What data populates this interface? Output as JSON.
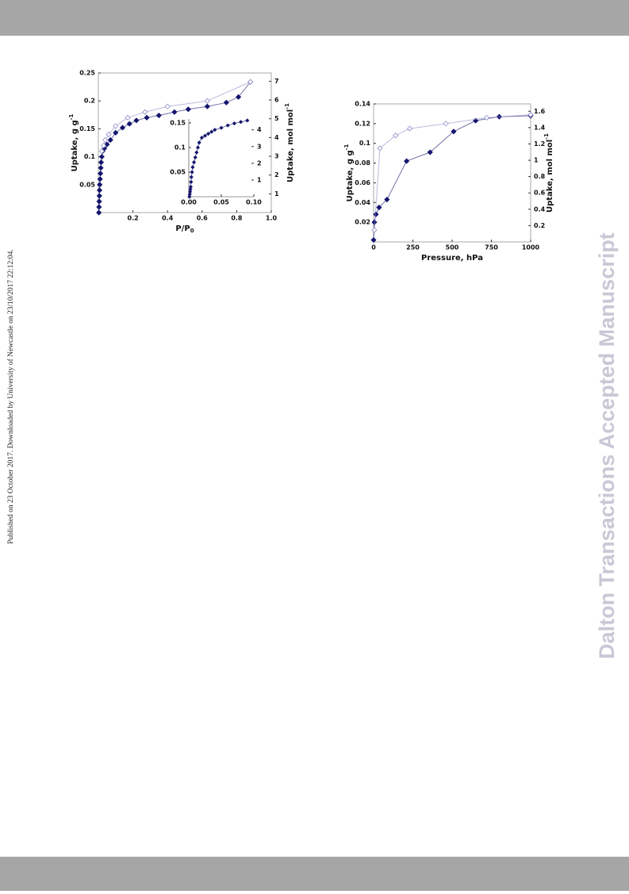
{
  "side_note": "Published on 23 October 2017. Downloaded by University of Newcastle on 23/10/2017 22:12:04.",
  "watermark": "Dalton Transactions Accepted Manuscript",
  "chart_data": [
    {
      "type": "scatter",
      "x_label": "P/P",
      "x_label_sub": "0",
      "y_label": "Uptake, g g",
      "y_label_sup": "-1",
      "y2_label": "Uptake, mol mol",
      "y2_label_sup": "-1",
      "xlim": [
        0,
        1.0
      ],
      "xticks": [
        0.2,
        0.4,
        0.6,
        0.8,
        {
          "value": 1.0,
          "label": "1.0"
        }
      ],
      "ylim": [
        0,
        0.25
      ],
      "yticks": [
        0.05,
        0.1,
        0.15,
        0.2,
        0.25
      ],
      "y2lim": [
        0,
        7.44
      ],
      "y2ticks": [
        1,
        2,
        3,
        4,
        5,
        6,
        7
      ],
      "series": [
        {
          "name": "adsorption",
          "color": "#14146e",
          "filled": true,
          "x": [
            0.003,
            0.004,
            0.005,
            0.006,
            0.007,
            0.008,
            0.01,
            0.012,
            0.014,
            0.016,
            0.02,
            0.025,
            0.035,
            0.05,
            0.07,
            0.1,
            0.14,
            0.18,
            0.22,
            0.28,
            0.35,
            0.44,
            0.52,
            0.63,
            0.74,
            0.81,
            0.88
          ],
          "values": [
            0.0,
            0.01,
            0.02,
            0.03,
            0.04,
            0.05,
            0.06,
            0.07,
            0.08,
            0.09,
            0.1,
            0.11,
            0.115,
            0.122,
            0.13,
            0.143,
            0.152,
            0.159,
            0.165,
            0.17,
            0.174,
            0.18,
            0.185,
            0.19,
            0.197,
            0.207,
            0.234
          ]
        },
        {
          "name": "desorption",
          "color": "#8c8cc8",
          "filled": false,
          "x": [
            0.88,
            0.63,
            0.4,
            0.27,
            0.17,
            0.1,
            0.06,
            0.04,
            0.03,
            0.02
          ],
          "values": [
            0.234,
            0.2,
            0.19,
            0.18,
            0.17,
            0.155,
            0.14,
            0.13,
            0.12,
            0.11
          ]
        }
      ]
    },
    {
      "type": "scatter",
      "xlim": [
        0,
        0.1
      ],
      "xticks": [
        {
          "value": 0,
          "label": "0.00"
        },
        0.05,
        {
          "value": 0.1,
          "label": "0.10"
        }
      ],
      "ylim": [
        0,
        0.158
      ],
      "yticks": [
        0.05,
        0.1,
        0.15
      ],
      "y2lim": [
        0,
        4.65
      ],
      "y2ticks": [
        1,
        2,
        3,
        4
      ],
      "series": [
        {
          "name": "adsorption",
          "color": "#14146e",
          "filled": true,
          "x": [
            0.001,
            0.0015,
            0.002,
            0.0025,
            0.003,
            0.0035,
            0.004,
            0.005,
            0.006,
            0.008,
            0.01,
            0.012,
            0.014,
            0.016,
            0.02,
            0.025,
            0.03,
            0.035,
            0.04,
            0.05,
            0.06,
            0.07,
            0.08,
            0.09
          ],
          "values": [
            0.0,
            0.005,
            0.01,
            0.015,
            0.02,
            0.03,
            0.04,
            0.05,
            0.06,
            0.07,
            0.08,
            0.09,
            0.1,
            0.11,
            0.12,
            0.124,
            0.128,
            0.132,
            0.136,
            0.14,
            0.145,
            0.149,
            0.152,
            0.155
          ]
        }
      ]
    },
    {
      "type": "scatter",
      "x_label": "Pressure, hPa",
      "y_label": "Uptake, g g",
      "y_label_sup": "-1",
      "y2_label": "Uptake, mol mol",
      "y2_label_sup": "-1",
      "xlim": [
        0,
        1000
      ],
      "xticks": [
        0,
        250,
        500,
        750,
        1000
      ],
      "ylim": [
        0,
        0.14
      ],
      "yticks": [
        0.02,
        0.04,
        0.06,
        0.08,
        0.1,
        0.12,
        0.14
      ],
      "y2lim": [
        0,
        1.69
      ],
      "y2ticks": [
        0.2,
        0.4,
        0.6,
        0.8,
        1,
        1.2,
        1.4,
        1.6
      ],
      "series": [
        {
          "name": "adsorption",
          "color": "#14146e",
          "filled": true,
          "x": [
            0,
            5,
            15,
            35,
            85,
            210,
            360,
            510,
            650,
            800,
            1000
          ],
          "values": [
            0.002,
            0.02,
            0.028,
            0.035,
            0.043,
            0.082,
            0.091,
            0.112,
            0.123,
            0.127,
            0.128
          ]
        },
        {
          "name": "desorption",
          "color": "#8c8cc8",
          "filled": false,
          "x": [
            1000,
            720,
            460,
            230,
            140,
            40,
            5
          ],
          "values": [
            0.129,
            0.126,
            0.12,
            0.115,
            0.108,
            0.095,
            0.012
          ]
        }
      ]
    }
  ]
}
